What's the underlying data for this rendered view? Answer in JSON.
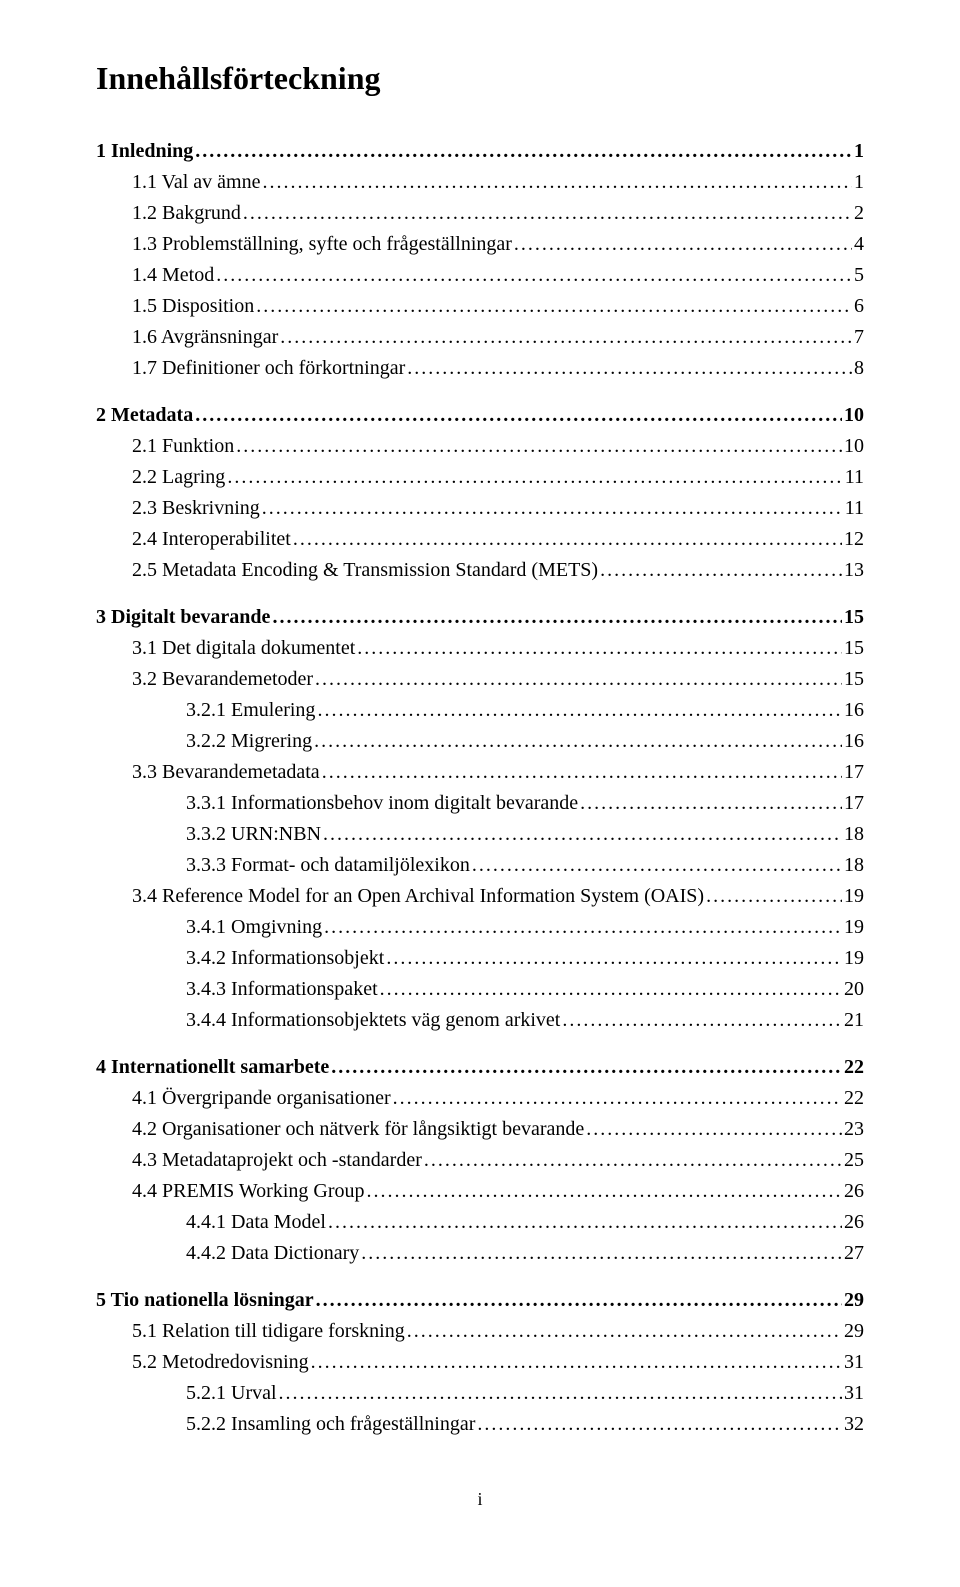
{
  "title": "Innehållsförteckning",
  "footer": "i",
  "toc": [
    {
      "level": 1,
      "label": "1   Inledning",
      "page": "1",
      "gap_before": false
    },
    {
      "level": 2,
      "label": "1.1   Val av ämne",
      "page": "1"
    },
    {
      "level": 2,
      "label": "1.2   Bakgrund",
      "page": "2"
    },
    {
      "level": 2,
      "label": "1.3   Problemställning, syfte och frågeställningar",
      "page": "4"
    },
    {
      "level": 2,
      "label": "1.4   Metod",
      "page": "5"
    },
    {
      "level": 2,
      "label": "1.5   Disposition",
      "page": "6"
    },
    {
      "level": 2,
      "label": "1.6   Avgränsningar",
      "page": "7"
    },
    {
      "level": 2,
      "label": "1.7   Definitioner och förkortningar",
      "page": "8"
    },
    {
      "level": 1,
      "label": "2   Metadata",
      "page": "10",
      "gap_before": true
    },
    {
      "level": 2,
      "label": "2.1   Funktion",
      "page": "10"
    },
    {
      "level": 2,
      "label": "2.2   Lagring",
      "page": "11"
    },
    {
      "level": 2,
      "label": "2.3   Beskrivning",
      "page": "11"
    },
    {
      "level": 2,
      "label": "2.4   Interoperabilitet",
      "page": "12"
    },
    {
      "level": 2,
      "label": "2.5   Metadata Encoding & Transmission Standard (METS)",
      "page": "13"
    },
    {
      "level": 1,
      "label": "3   Digitalt bevarande",
      "page": "15",
      "gap_before": true
    },
    {
      "level": 2,
      "label": "3.1   Det digitala dokumentet",
      "page": "15"
    },
    {
      "level": 2,
      "label": "3.2   Bevarandemetoder",
      "page": "15"
    },
    {
      "level": 3,
      "label": "3.2.1   Emulering",
      "page": "16"
    },
    {
      "level": 3,
      "label": "3.2.2   Migrering",
      "page": "16"
    },
    {
      "level": 2,
      "label": "3.3   Bevarandemetadata",
      "page": "17"
    },
    {
      "level": 3,
      "label": "3.3.1   Informationsbehov inom digitalt bevarande",
      "page": "17"
    },
    {
      "level": 3,
      "label": "3.3.2   URN:NBN",
      "page": "18"
    },
    {
      "level": 3,
      "label": "3.3.3   Format- och datamiljölexikon",
      "page": "18"
    },
    {
      "level": 2,
      "label": "3.4   Reference Model for an Open Archival Information System (OAIS)",
      "page": "19"
    },
    {
      "level": 3,
      "label": "3.4.1   Omgivning",
      "page": "19"
    },
    {
      "level": 3,
      "label": "3.4.2   Informationsobjekt",
      "page": "19"
    },
    {
      "level": 3,
      "label": "3.4.3   Informationspaket",
      "page": "20"
    },
    {
      "level": 3,
      "label": "3.4.4   Informationsobjektets väg genom arkivet",
      "page": "21"
    },
    {
      "level": 1,
      "label": "4   Internationellt samarbete",
      "page": "22",
      "gap_before": true
    },
    {
      "level": 2,
      "label": "4.1   Övergripande organisationer",
      "page": "22"
    },
    {
      "level": 2,
      "label": "4.2   Organisationer och nätverk för långsiktigt bevarande",
      "page": "23"
    },
    {
      "level": 2,
      "label": "4.3   Metadataprojekt och -standarder",
      "page": "25"
    },
    {
      "level": 2,
      "label": "4.4   PREMIS Working Group",
      "page": "26"
    },
    {
      "level": 3,
      "label": "4.4.1   Data Model",
      "page": "26"
    },
    {
      "level": 3,
      "label": "4.4.2   Data Dictionary",
      "page": "27"
    },
    {
      "level": 1,
      "label": "5   Tio nationella lösningar",
      "page": "29",
      "gap_before": true
    },
    {
      "level": 2,
      "label": "5.1   Relation till tidigare forskning",
      "page": "29"
    },
    {
      "level": 2,
      "label": "5.2   Metodredovisning",
      "page": "31"
    },
    {
      "level": 3,
      "label": "5.2.1   Urval",
      "page": "31"
    },
    {
      "level": 3,
      "label": "5.2.2   Insamling och frågeställningar",
      "page": "32"
    }
  ]
}
